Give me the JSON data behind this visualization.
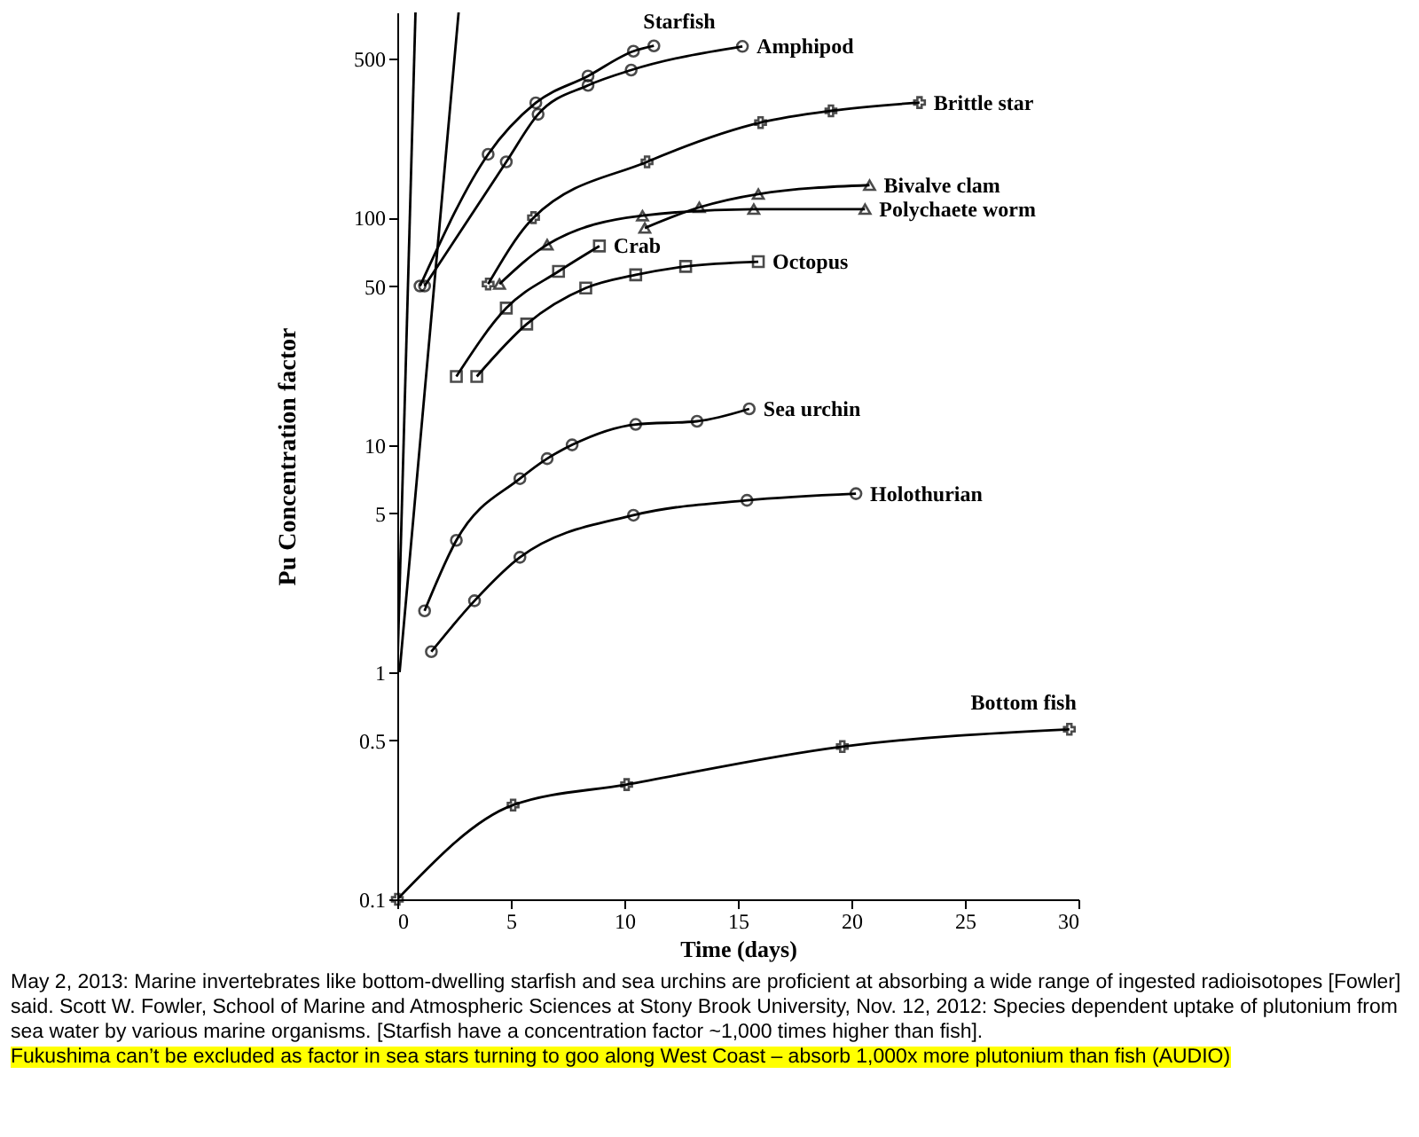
{
  "chart_data": {
    "type": "line",
    "xlabel": "Time (days)",
    "ylabel": "Pu Concentration factor",
    "log": "y",
    "grid": false,
    "legend": false,
    "line_style": "solid",
    "xlim": [
      0,
      30
    ],
    "xticks": [
      0,
      5,
      10,
      15,
      20,
      25,
      30
    ],
    "ylim": [
      0.1,
      800
    ],
    "yticks": [
      0.1,
      0.5,
      1,
      5,
      10,
      50,
      100,
      500
    ],
    "series": [
      {
        "name": "Starfish",
        "color": "#000000",
        "marker": "circle",
        "x": [
          1,
          4,
          6.1,
          8.4,
          10.4,
          11.3
        ],
        "values": [
          50,
          190,
          320,
          420,
          540,
          570
        ]
      },
      {
        "name": "Amphipod",
        "color": "#000000",
        "marker": "circle",
        "x": [
          1.2,
          4.8,
          6.2,
          8.4,
          10.3,
          15.2
        ],
        "values": [
          50,
          176,
          285,
          382,
          446,
          567
        ]
      },
      {
        "name": "Brittle star",
        "color": "#000000",
        "marker": "cross",
        "x": [
          4,
          6,
          11,
          16,
          19.1,
          23
        ],
        "values": [
          51,
          100,
          176,
          262,
          295,
          321
        ]
      },
      {
        "name": "Bivalve clam",
        "color": "#000000",
        "marker": "triangle",
        "x": [
          10.9,
          13.3,
          15.9,
          20.8
        ],
        "values": [
          90,
          111,
          127,
          139
        ]
      },
      {
        "name": "Polychaete worm",
        "color": "#000000",
        "marker": "triangle",
        "x": [
          4.5,
          6.6,
          10.8,
          15.7,
          20.6
        ],
        "values": [
          51,
          76,
          102,
          109,
          109
        ]
      },
      {
        "name": "Crab",
        "color": "#000000",
        "marker": "square",
        "x": [
          2.6,
          4.8,
          7.1,
          8.9
        ],
        "values": [
          20,
          40,
          58,
          75
        ]
      },
      {
        "name": "Octopus",
        "color": "#000000",
        "marker": "square",
        "x": [
          3.5,
          5.7,
          8.3,
          10.5,
          12.7,
          15.9
        ],
        "values": [
          20,
          34,
          49,
          56,
          61,
          64
        ]
      },
      {
        "name": "Sea urchin",
        "color": "#000000",
        "marker": "circle",
        "x": [
          1.2,
          2.6,
          5.4,
          6.6,
          7.7,
          10.5,
          13.2,
          15.5
        ],
        "values": [
          1.86,
          3.8,
          7.1,
          8.7,
          10,
          12.3,
          12.7,
          14.4
        ]
      },
      {
        "name": "Holothurian",
        "color": "#000000",
        "marker": "circle",
        "x": [
          1.5,
          3.4,
          5.4,
          10.4,
          15.4,
          20.2
        ],
        "values": [
          1.23,
          2.06,
          3.2,
          4.9,
          5.7,
          6.1
        ]
      },
      {
        "name": "Bottom fish",
        "color": "#000000",
        "marker": "cross",
        "x": [
          0,
          5.1,
          10.1,
          19.6,
          29.6
        ],
        "values": [
          0.1,
          0.26,
          0.32,
          0.47,
          0.56
        ]
      },
      {
        "color": "#000000",
        "marker": "none",
        "x": [
          0,
          0.8
        ],
        "values": [
          1,
          800
        ]
      },
      {
        "color": "#000000",
        "marker": "none",
        "x": [
          0.1,
          2.7
        ],
        "values": [
          1,
          800
        ]
      }
    ],
    "annotations": [
      "May 2, 2013: Marine invertebrates like bottom-dwelling starfish and sea urchins are proficient at absorbing a wide range of ingested radioisotopes [Fowler] said. Scott W. Fowler, School of Marine and Atmospheric Sciences at Stony Brook University, Nov. 12, 2012: Species dependent uptake of plutonium from sea water by various marine organisms. [Starfish have a concentration factor ~1,000 times higher than fish].",
      "Fukushima can’t be excluded as factor in sea stars turning to goo along West Coast – absorb 1,000x more plutonium than fish (AUDIO)"
    ]
  }
}
